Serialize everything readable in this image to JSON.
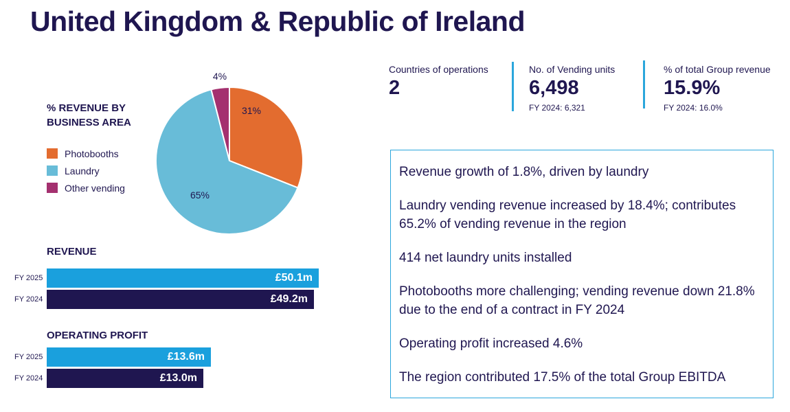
{
  "page": {
    "title": "United Kingdom & Republic of Ireland"
  },
  "pie": {
    "title_line1": "% REVENUE BY",
    "title_line2": "BUSINESS AREA",
    "legend": [
      {
        "label": "Photobooths",
        "color": "#e36c2f"
      },
      {
        "label": "Laundry",
        "color": "#68bcd8"
      },
      {
        "label": "Other vending",
        "color": "#a4306f"
      }
    ],
    "labels": [
      "31%",
      "65%",
      "4%"
    ]
  },
  "revenue": {
    "title": "REVENUE",
    "rows": [
      {
        "year": "FY 2025",
        "label": "£50.1m",
        "color": "#1aa0dd"
      },
      {
        "year": "FY 2024",
        "label": "£49.2m",
        "color": "#1f1650"
      }
    ]
  },
  "operating_profit": {
    "title": "OPERATING PROFIT",
    "rows": [
      {
        "year": "FY 2025",
        "label": "£13.6m",
        "color": "#1aa0dd"
      },
      {
        "year": "FY 2024",
        "label": "£13.0m",
        "color": "#1f1650"
      }
    ]
  },
  "kpis": [
    {
      "label": "Countries of operations",
      "value": "2",
      "sub": ""
    },
    {
      "label": "No. of Vending units",
      "value": "6,498",
      "sub": "FY 2024: 6,321"
    },
    {
      "label": "% of total Group revenue",
      "value": "15.9%",
      "sub": "FY 2024: 16.0%"
    }
  ],
  "highlights": [
    "Revenue growth of 1.8%, driven by laundry",
    "Laundry vending revenue increased by 18.4%; contributes 65.2% of vending revenue in the region",
    "414 net laundry units installed",
    "Photobooths more challenging; vending revenue down 21.8% due to the end of a contract in FY 2024",
    "Operating profit increased 4.6%",
    "The region contributed 17.5% of the total Group EBITDA"
  ],
  "chart_data": [
    {
      "type": "pie",
      "title": "% REVENUE BY BUSINESS AREA",
      "categories": [
        "Photobooths",
        "Laundry",
        "Other vending"
      ],
      "values": [
        31,
        65,
        4
      ],
      "colors": [
        "#e36c2f",
        "#68bcd8",
        "#a4306f"
      ],
      "legend": "left"
    },
    {
      "type": "bar",
      "orientation": "horizontal",
      "title": "REVENUE",
      "categories": [
        "FY 2025",
        "FY 2024"
      ],
      "values": [
        50.1,
        49.2
      ],
      "unit": "£m",
      "colors": [
        "#1aa0dd",
        "#1f1650"
      ]
    },
    {
      "type": "bar",
      "orientation": "horizontal",
      "title": "OPERATING PROFIT",
      "categories": [
        "FY 2025",
        "FY 2024"
      ],
      "values": [
        13.6,
        13.0
      ],
      "unit": "£m",
      "colors": [
        "#1aa0dd",
        "#1f1650"
      ]
    }
  ]
}
